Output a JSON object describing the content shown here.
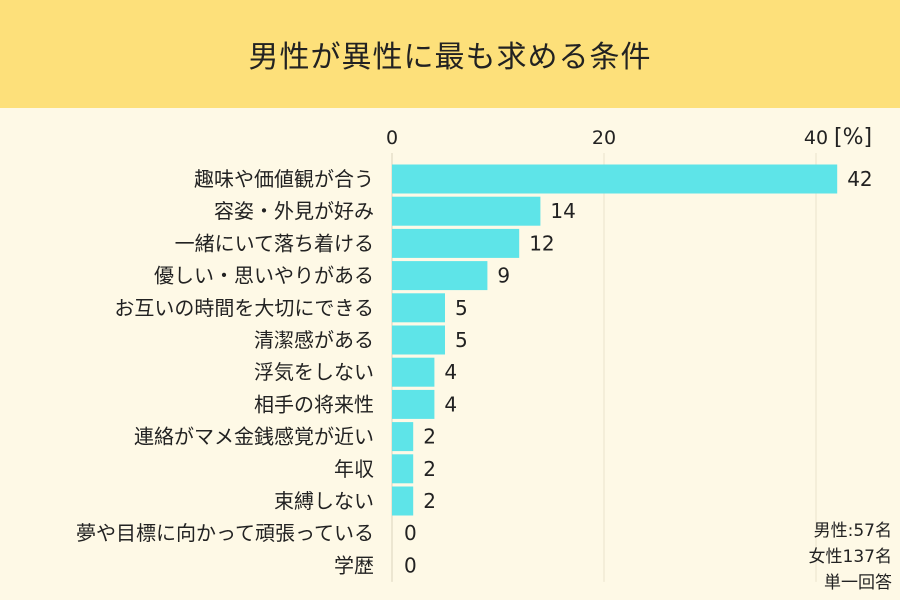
{
  "title": "男性が異性に最も求める条件",
  "chart_data": {
    "type": "bar",
    "orientation": "horizontal",
    "title": "男性が異性に最も求める条件",
    "unit_label": "[%]",
    "xlim": [
      0,
      42
    ],
    "x_ticks": [
      0,
      20,
      40
    ],
    "grid": true,
    "bar_color": "#5ee4e8",
    "categories": [
      "趣味や価値観が合う",
      "容姿・外見が好み",
      "一緒にいて落ち着ける",
      "優しい・思いやりがある",
      "お互いの時間を大切にできる",
      "清潔感がある",
      "浮気をしない",
      "相手の将来性",
      "連絡がマメ金銭感覚が近い",
      "年収",
      "束縛しない",
      "夢や目標に向かって頑張っている",
      "学歴"
    ],
    "values": [
      42,
      14,
      12,
      9,
      5,
      5,
      4,
      4,
      2,
      2,
      2,
      0,
      0
    ]
  },
  "notes": [
    "男性:57名",
    "女性137名",
    "単一回答"
  ]
}
